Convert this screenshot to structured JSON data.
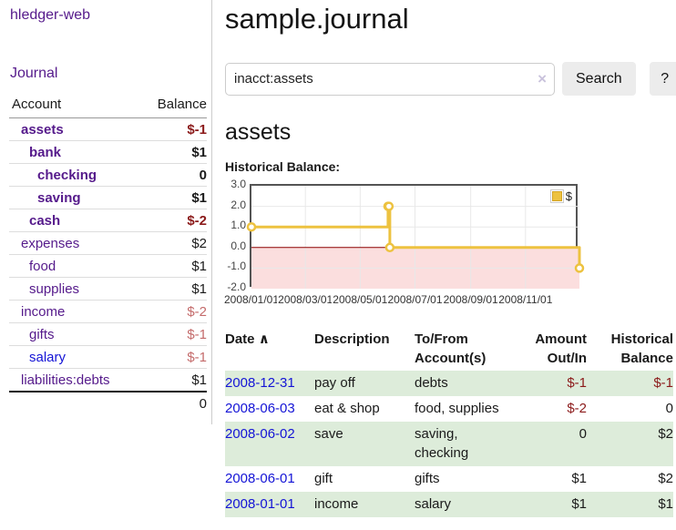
{
  "colors": {
    "text": "#1a1a1a",
    "link-visited": "#551a8b",
    "link-blue": "#1414d6",
    "neg-strong": "#8b1a1a",
    "neg-soft": "#c46b6b",
    "row-green": "#ddecda",
    "row-border": "#dddddd",
    "divider": "#cccccc",
    "button-bg": "#ececec",
    "clear-icon": "#c9c2dc",
    "chart-line": "#edc240",
    "chart-border": "#545454",
    "tick-label": "#444444"
  },
  "sidebar": {
    "brand": "hledger-web",
    "journal_link": "Journal",
    "table": {
      "account_header": "Account",
      "balance_header": "Balance",
      "accounts": [
        {
          "name": "assets",
          "balance": "$-1",
          "depth": 1,
          "bold": true,
          "balance_tone": "neg",
          "link_tone": "visited"
        },
        {
          "name": "bank",
          "balance": "$1",
          "depth": 2,
          "bold": true,
          "balance_tone": "plain",
          "link_tone": "visited"
        },
        {
          "name": "checking",
          "balance": "0",
          "depth": 3,
          "bold": true,
          "balance_tone": "plain",
          "link_tone": "visited"
        },
        {
          "name": "saving",
          "balance": "$1",
          "depth": 3,
          "bold": true,
          "balance_tone": "plain",
          "link_tone": "visited"
        },
        {
          "name": "cash",
          "balance": "$-2",
          "depth": 2,
          "bold": true,
          "balance_tone": "neg",
          "link_tone": "visited"
        },
        {
          "name": "expenses",
          "balance": "$2",
          "depth": 1,
          "bold": false,
          "balance_tone": "plain",
          "link_tone": "visited"
        },
        {
          "name": "food",
          "balance": "$1",
          "depth": 2,
          "bold": false,
          "balance_tone": "plain",
          "link_tone": "visited"
        },
        {
          "name": "supplies",
          "balance": "$1",
          "depth": 2,
          "bold": false,
          "balance_tone": "plain",
          "link_tone": "visited"
        },
        {
          "name": "income",
          "balance": "$-2",
          "depth": 1,
          "bold": false,
          "balance_tone": "neg-soft",
          "link_tone": "visited"
        },
        {
          "name": "gifts",
          "balance": "$-1",
          "depth": 2,
          "bold": false,
          "balance_tone": "neg-soft",
          "link_tone": "visited"
        },
        {
          "name": "salary",
          "balance": "$-1",
          "depth": 2,
          "bold": false,
          "balance_tone": "neg-soft",
          "link_tone": "unvisited"
        },
        {
          "name": "liabilities:debts",
          "balance": "$1",
          "depth": 1,
          "bold": false,
          "balance_tone": "plain",
          "link_tone": "visited"
        }
      ],
      "total": "0"
    }
  },
  "header": {
    "title": "sample.journal"
  },
  "search": {
    "value": "inacct:assets",
    "clear_icon": "×",
    "button_label": "Search",
    "help_label": "?"
  },
  "account_page": {
    "title": "assets",
    "chart_label": "Historical Balance:"
  },
  "chart_data": {
    "type": "line",
    "step": true,
    "title": "Historical Balance",
    "x_range": [
      "2008-01-01",
      "2008-12-31"
    ],
    "y_range": [
      -2,
      3
    ],
    "x_ticks": [
      "2008/01/01",
      "2008/03/01",
      "2008/05/01",
      "2008/07/01",
      "2008/09/01",
      "2008/11/01"
    ],
    "y_ticks": [
      "3.0",
      "2.0",
      "1.0",
      "0.0",
      "-1.0",
      "-2.0"
    ],
    "grid": true,
    "grid_color": "#e8e8e8",
    "zero_line_color": "#8b0000",
    "negative_region_color": "#fbdede",
    "legend": {
      "position": "top-right",
      "label": "$",
      "swatch_color": "#edc240"
    },
    "series": [
      {
        "name": "$",
        "color": "#edc240",
        "points": [
          [
            "2008-01-01",
            1
          ],
          [
            "2008-06-01",
            2
          ],
          [
            "2008-06-02",
            2
          ],
          [
            "2008-06-03",
            0
          ],
          [
            "2008-12-31",
            -1
          ]
        ]
      }
    ]
  },
  "register": {
    "headers": {
      "date": {
        "label": "Date",
        "sort_icon": "∧"
      },
      "description": "Description",
      "account": {
        "line1": "To/From",
        "line2": "Account(s)"
      },
      "amount": {
        "line1": "Amount",
        "line2": "Out/In"
      },
      "balance": {
        "line1": "Historical",
        "line2": "Balance"
      }
    },
    "rows": [
      {
        "date": "2008-12-31",
        "description": "pay off",
        "accounts": "debts",
        "amount": "$-1",
        "amount_tone": "neg",
        "balance": "$-1",
        "balance_tone": "neg"
      },
      {
        "date": "2008-06-03",
        "description": "eat & shop",
        "accounts": "food, supplies",
        "amount": "$-2",
        "amount_tone": "neg",
        "balance": "0",
        "balance_tone": "plain"
      },
      {
        "date": "2008-06-02",
        "description": "save",
        "accounts": "saving, checking",
        "amount": "0",
        "amount_tone": "plain",
        "balance": "$2",
        "balance_tone": "plain"
      },
      {
        "date": "2008-06-01",
        "description": "gift",
        "accounts": "gifts",
        "amount": "$1",
        "amount_tone": "plain",
        "balance": "$2",
        "balance_tone": "plain"
      },
      {
        "date": "2008-01-01",
        "description": "income",
        "accounts": "salary",
        "amount": "$1",
        "amount_tone": "plain",
        "balance": "$1",
        "balance_tone": "plain"
      }
    ]
  }
}
